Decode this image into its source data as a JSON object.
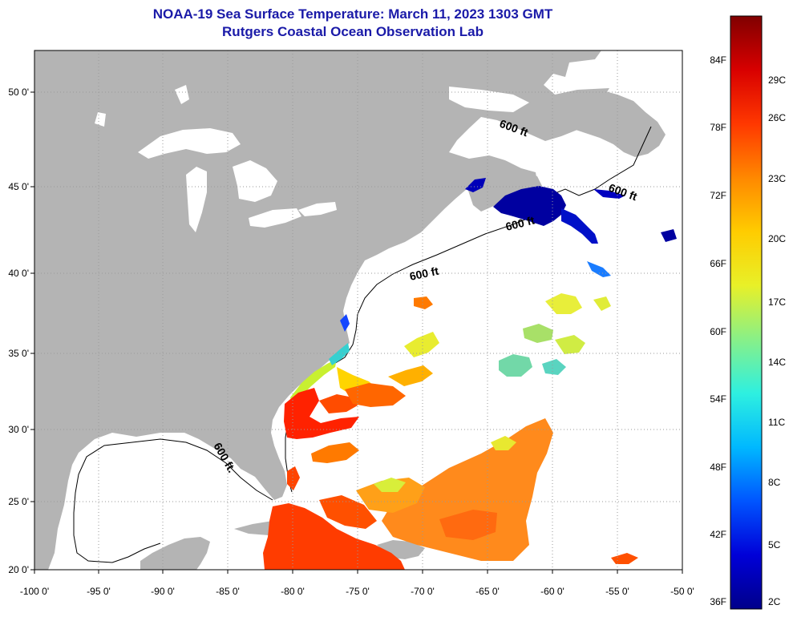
{
  "title": {
    "line1": "NOAA-19 Sea Surface Temperature:  March 11, 2023 1303 GMT",
    "line2": "Rutgers Coastal Ocean Observation Lab"
  },
  "map": {
    "lon_ticks": [
      "-100 0'",
      "-95 0'",
      "-90 0'",
      "-85 0'",
      "-80 0'",
      "-75 0'",
      "-70 0'",
      "-65 0'",
      "-60 0'",
      "-55 0'",
      "-50 0'"
    ],
    "lat_ticks": [
      "50 0'",
      "45 0'",
      "40 0'",
      "35 0'",
      "30 0'",
      "25 0'",
      "20 0'"
    ],
    "contour_label": "600 ft",
    "contour_label_gulf": "600 ft.",
    "colors": {
      "land": "#b4b4b4",
      "ocean": "#ffffff",
      "grid": "#9a9a9a"
    }
  },
  "colorbar": {
    "fahrenheit": [
      "84F",
      "78F",
      "72F",
      "66F",
      "60F",
      "54F",
      "48F",
      "42F",
      "36F"
    ],
    "celsius": [
      "29C",
      "26C",
      "23C",
      "20C",
      "17C",
      "14C",
      "11C",
      "8C",
      "5C",
      "2C"
    ],
    "colors": [
      "#00008a",
      "#0000d8",
      "#0055ff",
      "#00b8ff",
      "#2ef0e0",
      "#88f088",
      "#e8f028",
      "#ffcc00",
      "#ff8800",
      "#ff3800",
      "#d80000",
      "#800000"
    ]
  }
}
